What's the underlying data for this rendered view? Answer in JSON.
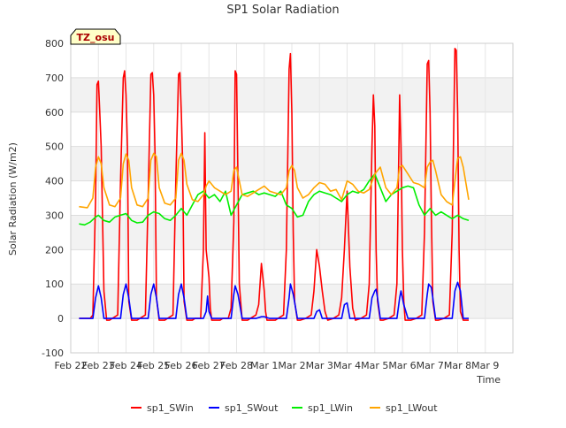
{
  "chart_data": {
    "type": "line",
    "title": "SP1 Solar Radiation",
    "xlabel": "Time",
    "ylabel": "Solar Radiation (W/m2)",
    "site_label": "TZ_osu",
    "xlim": [
      0,
      16
    ],
    "ylim": [
      -100,
      800
    ],
    "y_ticks": [
      -100,
      0,
      100,
      200,
      300,
      400,
      500,
      600,
      700,
      800
    ],
    "x_tick_labels": [
      "Feb 22",
      "Feb 23",
      "Feb 24",
      "Feb 25",
      "Feb 26",
      "Feb 27",
      "Feb 28",
      "Mar 1",
      "Mar 2",
      "Mar 3",
      "Mar 4",
      "Mar 5",
      "Mar 6",
      "Mar 7",
      "Mar 8",
      "Mar 9"
    ],
    "x_units": "days since Feb 22",
    "grid": true,
    "legend_position": "bottom",
    "series": [
      {
        "name": "sp1_SWin",
        "color": "#ff0000",
        "x": [
          0.3,
          0.7,
          0.8,
          0.9,
          0.95,
          1.0,
          1.05,
          1.1,
          1.2,
          1.3,
          1.4,
          1.5,
          1.7,
          1.8,
          1.9,
          1.95,
          2.0,
          2.05,
          2.1,
          2.2,
          2.3,
          2.4,
          2.5,
          2.7,
          2.8,
          2.9,
          2.95,
          3.0,
          3.05,
          3.1,
          3.2,
          3.3,
          3.4,
          3.5,
          3.7,
          3.8,
          3.9,
          3.95,
          4.0,
          4.05,
          4.1,
          4.2,
          4.3,
          4.4,
          4.5,
          4.7,
          4.8,
          4.85,
          4.9,
          5.0,
          5.05,
          5.1,
          5.2,
          5.3,
          5.4,
          5.5,
          5.7,
          5.8,
          5.9,
          5.95,
          6.0,
          6.05,
          6.1,
          6.2,
          6.3,
          6.4,
          6.5,
          6.7,
          6.8,
          6.9,
          7.0,
          7.05,
          7.1,
          7.2,
          7.3,
          7.4,
          7.5,
          7.7,
          7.8,
          7.9,
          7.95,
          8.0,
          8.05,
          8.1,
          8.2,
          8.3,
          8.5,
          8.7,
          8.8,
          8.9,
          9.0,
          9.1,
          9.2,
          9.3,
          9.5,
          9.7,
          9.8,
          9.9,
          10.0,
          10.1,
          10.2,
          10.3,
          10.5,
          10.7,
          10.8,
          10.9,
          10.95,
          11.0,
          11.05,
          11.1,
          11.2,
          11.3,
          11.5,
          11.7,
          11.8,
          11.9,
          11.95,
          12.0,
          12.05,
          12.1,
          12.2,
          12.3,
          12.5,
          12.7,
          12.8,
          12.9,
          12.95,
          13.0,
          13.05,
          13.1,
          13.2,
          13.3,
          13.5,
          13.7,
          13.8,
          13.9,
          13.95,
          14.0,
          14.05,
          14.1,
          14.2,
          14.3,
          14.4
        ],
        "y": [
          0,
          0,
          10,
          350,
          680,
          690,
          600,
          500,
          80,
          -5,
          -5,
          0,
          10,
          400,
          700,
          720,
          650,
          500,
          50,
          -5,
          -5,
          -5,
          0,
          10,
          350,
          710,
          715,
          650,
          480,
          60,
          -5,
          -5,
          -5,
          0,
          10,
          400,
          710,
          715,
          600,
          450,
          50,
          -5,
          -5,
          -5,
          0,
          0,
          200,
          540,
          200,
          120,
          30,
          -5,
          -5,
          -5,
          -5,
          0,
          0,
          30,
          280,
          720,
          710,
          400,
          100,
          -5,
          -5,
          -5,
          0,
          10,
          40,
          160,
          80,
          20,
          -5,
          -5,
          -5,
          -5,
          0,
          10,
          200,
          725,
          770,
          600,
          250,
          50,
          -5,
          -5,
          0,
          10,
          80,
          200,
          150,
          80,
          20,
          -5,
          0,
          10,
          60,
          200,
          370,
          150,
          30,
          -5,
          0,
          10,
          100,
          500,
          650,
          560,
          200,
          50,
          -5,
          -5,
          0,
          10,
          100,
          650,
          500,
          200,
          50,
          -5,
          -5,
          -5,
          0,
          10,
          250,
          740,
          750,
          600,
          300,
          50,
          -5,
          -5,
          0,
          10,
          250,
          785,
          780,
          600,
          200,
          20,
          -5,
          -5,
          -5
        ]
      },
      {
        "name": "sp1_SWout",
        "color": "#0000ff",
        "x": [
          0.3,
          0.8,
          0.9,
          1.0,
          1.1,
          1.2,
          1.8,
          1.9,
          2.0,
          2.1,
          2.2,
          2.8,
          2.9,
          3.0,
          3.1,
          3.2,
          3.8,
          3.9,
          4.0,
          4.1,
          4.2,
          4.8,
          4.9,
          4.95,
          5.0,
          5.1,
          5.8,
          5.9,
          5.95,
          6.05,
          6.2,
          6.7,
          6.9,
          7.0,
          7.2,
          7.8,
          7.9,
          7.95,
          8.05,
          8.2,
          8.8,
          8.9,
          9.0,
          9.1,
          9.8,
          9.9,
          10.0,
          10.1,
          10.8,
          10.9,
          11.0,
          11.05,
          11.1,
          11.2,
          11.8,
          11.9,
          11.95,
          12.05,
          12.2,
          12.8,
          12.9,
          12.95,
          13.05,
          13.2,
          13.8,
          13.9,
          14.0,
          14.1,
          14.2,
          14.4
        ],
        "y": [
          0,
          0,
          60,
          95,
          60,
          0,
          0,
          70,
          100,
          60,
          0,
          0,
          70,
          100,
          60,
          0,
          0,
          70,
          100,
          60,
          0,
          0,
          20,
          65,
          20,
          0,
          0,
          70,
          95,
          70,
          0,
          0,
          5,
          5,
          0,
          0,
          60,
          100,
          70,
          0,
          0,
          20,
          25,
          0,
          0,
          40,
          45,
          0,
          0,
          60,
          80,
          85,
          60,
          0,
          0,
          60,
          80,
          40,
          0,
          0,
          70,
          100,
          90,
          0,
          0,
          80,
          105,
          80,
          0,
          0
        ]
      },
      {
        "name": "sp1_LWin",
        "color": "#00ee00",
        "x": [
          0.3,
          0.5,
          0.7,
          0.9,
          1.0,
          1.2,
          1.4,
          1.6,
          1.8,
          2.0,
          2.2,
          2.4,
          2.6,
          2.8,
          3.0,
          3.2,
          3.4,
          3.6,
          3.8,
          4.0,
          4.2,
          4.4,
          4.6,
          4.8,
          5.0,
          5.2,
          5.4,
          5.6,
          5.8,
          6.0,
          6.2,
          6.4,
          6.6,
          6.8,
          7.0,
          7.2,
          7.4,
          7.6,
          7.8,
          8.0,
          8.2,
          8.4,
          8.6,
          8.8,
          9.0,
          9.2,
          9.4,
          9.6,
          9.8,
          10.0,
          10.2,
          10.4,
          10.6,
          10.8,
          11.0,
          11.2,
          11.4,
          11.6,
          11.8,
          12.0,
          12.2,
          12.4,
          12.6,
          12.8,
          13.0,
          13.2,
          13.4,
          13.6,
          13.8,
          14.0,
          14.2,
          14.4
        ],
        "y": [
          275,
          272,
          280,
          295,
          300,
          285,
          280,
          295,
          300,
          305,
          285,
          278,
          280,
          300,
          310,
          305,
          290,
          285,
          300,
          320,
          300,
          330,
          360,
          370,
          350,
          360,
          340,
          370,
          300,
          330,
          360,
          365,
          370,
          360,
          365,
          360,
          355,
          370,
          330,
          320,
          295,
          300,
          340,
          360,
          370,
          365,
          360,
          350,
          340,
          360,
          370,
          365,
          375,
          400,
          420,
          380,
          340,
          360,
          370,
          380,
          385,
          380,
          330,
          300,
          320,
          300,
          310,
          300,
          290,
          300,
          290,
          285
        ]
      },
      {
        "name": "sp1_LWout",
        "color": "#ffa500",
        "x": [
          0.3,
          0.6,
          0.8,
          0.9,
          1.0,
          1.1,
          1.2,
          1.4,
          1.6,
          1.8,
          1.9,
          2.0,
          2.1,
          2.2,
          2.4,
          2.6,
          2.8,
          2.9,
          3.0,
          3.1,
          3.2,
          3.4,
          3.6,
          3.8,
          3.9,
          4.0,
          4.1,
          4.2,
          4.4,
          4.6,
          4.8,
          4.9,
          5.0,
          5.2,
          5.4,
          5.6,
          5.8,
          5.9,
          6.0,
          6.1,
          6.2,
          6.4,
          6.6,
          6.8,
          7.0,
          7.2,
          7.4,
          7.6,
          7.8,
          7.9,
          8.0,
          8.1,
          8.2,
          8.4,
          8.6,
          8.8,
          9.0,
          9.2,
          9.4,
          9.6,
          9.8,
          10.0,
          10.2,
          10.4,
          10.6,
          10.8,
          11.0,
          11.2,
          11.4,
          11.6,
          11.8,
          11.9,
          12.0,
          12.2,
          12.4,
          12.6,
          12.8,
          12.9,
          13.0,
          13.1,
          13.2,
          13.4,
          13.6,
          13.8,
          13.9,
          14.0,
          14.1,
          14.2,
          14.4
        ],
        "y": [
          325,
          322,
          350,
          440,
          470,
          450,
          380,
          330,
          325,
          350,
          450,
          478,
          460,
          380,
          330,
          325,
          350,
          460,
          480,
          470,
          380,
          335,
          330,
          350,
          460,
          480,
          460,
          390,
          345,
          340,
          360,
          385,
          400,
          380,
          370,
          360,
          370,
          430,
          440,
          400,
          360,
          355,
          365,
          375,
          385,
          370,
          365,
          360,
          380,
          430,
          445,
          430,
          380,
          350,
          360,
          380,
          395,
          390,
          370,
          375,
          345,
          400,
          390,
          370,
          365,
          375,
          420,
          440,
          380,
          360,
          380,
          440,
          445,
          420,
          395,
          390,
          380,
          440,
          455,
          460,
          430,
          360,
          340,
          330,
          400,
          465,
          470,
          440,
          345
        ]
      }
    ]
  }
}
